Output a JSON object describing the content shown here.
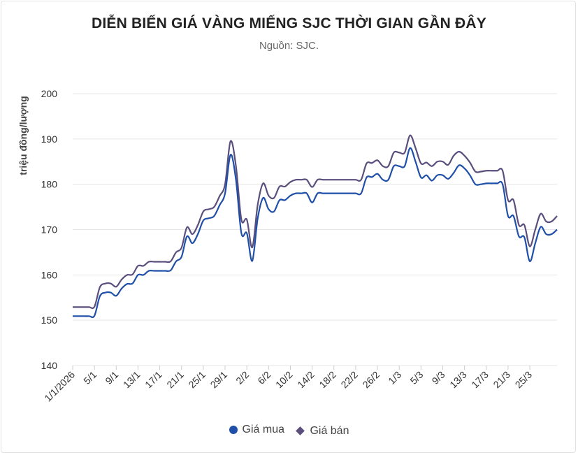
{
  "chart_data": {
    "type": "line",
    "title": "DIỄN BIẾN GIÁ VÀNG MIẾNG SJC THỜI GIAN GẦN ĐÂY",
    "subtitle": "Nguồn: SJC.",
    "xlabel": "",
    "ylabel": "triệu đồng/lượng",
    "ylim": [
      140,
      200
    ],
    "yticks": [
      140,
      150,
      160,
      170,
      180,
      190,
      200
    ],
    "grid": true,
    "legend_position": "bottom",
    "x_tick_labels": [
      "1/1/2026",
      "5/1",
      "9/1",
      "13/1",
      "17/1",
      "21/1",
      "25/1",
      "29/1",
      "2/2",
      "6/2",
      "10/2",
      "14/2",
      "18/2",
      "22/2",
      "26/2",
      "1/3",
      "5/3",
      "9/3",
      "13/3",
      "17/3",
      "21/3",
      "25/3"
    ],
    "series": [
      {
        "name": "Giá mua",
        "color": "#1f4fa8",
        "values": [
          150.9,
          150.9,
          150.9,
          150.9,
          151.0,
          155.3,
          156.1,
          156.1,
          155.4,
          157.0,
          158.0,
          158.1,
          160.0,
          160.0,
          160.9,
          160.9,
          160.9,
          160.9,
          161.0,
          163.0,
          164.0,
          168.5,
          167.0,
          169.0,
          172.0,
          172.5,
          173.0,
          175.4,
          178.0,
          186.5,
          181.0,
          169.2,
          169.2,
          163.1,
          172.5,
          177.0,
          174.5,
          174.0,
          176.5,
          176.5,
          177.5,
          178.0,
          178.0,
          178.0,
          176.0,
          178.0,
          178.0,
          178.0,
          178.0,
          178.0,
          178.0,
          178.0,
          178.0,
          178.0,
          181.5,
          181.6,
          182.3,
          181.0,
          181.0,
          184.0,
          184.0,
          184.0,
          188.0,
          185.0,
          181.5,
          182.0,
          180.8,
          182.0,
          182.0,
          181.2,
          182.5,
          184.2,
          183.5,
          182.0,
          180.0,
          180.0,
          180.2,
          180.2,
          180.2,
          180.0,
          173.0,
          173.0,
          168.5,
          168.3,
          163.0,
          167.0,
          170.6,
          169.0,
          169.0,
          170.0
        ]
      },
      {
        "name": "Giá bán",
        "color": "#5a4e7c",
        "values": [
          152.9,
          152.9,
          152.9,
          152.9,
          153.0,
          157.3,
          158.1,
          158.1,
          157.4,
          159.0,
          160.0,
          160.1,
          162.0,
          162.0,
          162.9,
          162.9,
          162.9,
          162.9,
          163.0,
          165.0,
          166.0,
          170.5,
          169.0,
          171.0,
          174.0,
          174.5,
          175.0,
          177.4,
          180.0,
          189.5,
          184.0,
          172.2,
          172.2,
          166.1,
          175.5,
          180.2,
          177.5,
          177.0,
          179.5,
          179.5,
          180.5,
          181.0,
          181.0,
          181.0,
          179.4,
          181.0,
          181.0,
          181.0,
          181.0,
          181.0,
          181.0,
          181.0,
          181.0,
          181.0,
          184.6,
          184.7,
          185.3,
          184.0,
          184.0,
          187.0,
          187.0,
          187.0,
          190.8,
          188.0,
          184.6,
          184.8,
          184.0,
          185.0,
          185.0,
          184.3,
          186.3,
          187.2,
          186.3,
          184.8,
          182.8,
          182.8,
          183.0,
          183.0,
          183.0,
          183.0,
          176.5,
          176.5,
          171.0,
          171.0,
          166.3,
          170.0,
          173.5,
          171.8,
          171.8,
          173.0
        ]
      }
    ]
  }
}
